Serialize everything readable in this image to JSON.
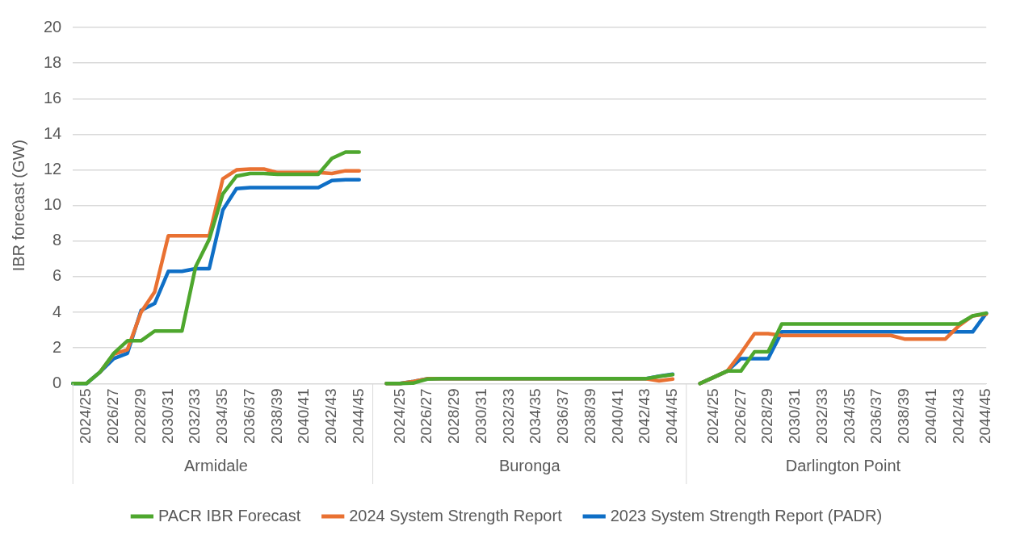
{
  "chart_data": {
    "type": "line",
    "ylabel": "IBR forecast (GW)",
    "categories": [
      null,
      "2024/25",
      null,
      "2026/27",
      null,
      "2028/29",
      null,
      "2030/31",
      null,
      "2032/33",
      null,
      "2034/35",
      null,
      "2036/37",
      null,
      "2038/39",
      null,
      "2040/41",
      null,
      "2042/43",
      null,
      "2044/45",
      null,
      null,
      "2024/25",
      null,
      "2026/27",
      null,
      "2028/29",
      null,
      "2030/31",
      null,
      "2032/33",
      null,
      "2034/35",
      null,
      "2036/37",
      null,
      "2038/39",
      null,
      "2040/41",
      null,
      "2042/43",
      null,
      "2044/45",
      null,
      null,
      "2024/25",
      null,
      "2026/27",
      null,
      "2028/29",
      null,
      "2030/31",
      null,
      "2032/33",
      null,
      "2034/35",
      null,
      "2036/37",
      null,
      "2038/39",
      null,
      "2040/41",
      null,
      "2042/43",
      null,
      "2044/45"
    ],
    "series": [
      {
        "name": "PACR IBR Forecast",
        "color": "#4ea72e",
        "values": [
          0,
          0,
          0.65,
          1.7,
          2.4,
          2.4,
          2.95,
          2.95,
          2.95,
          6.55,
          8.1,
          10.65,
          11.65,
          11.8,
          11.8,
          11.75,
          11.75,
          11.75,
          11.75,
          12.65,
          13,
          13,
          null,
          0,
          0,
          0.03,
          0.25,
          0.27,
          0.27,
          0.27,
          0.27,
          0.27,
          0.27,
          0.27,
          0.27,
          0.27,
          0.27,
          0.27,
          0.27,
          0.27,
          0.27,
          0.27,
          0.27,
          0.4,
          0.5,
          null,
          0,
          0.35,
          0.7,
          0.7,
          1.78,
          1.78,
          3.35,
          3.35,
          3.35,
          3.35,
          3.35,
          3.35,
          3.35,
          3.35,
          3.35,
          3.35,
          3.35,
          3.35,
          3.35,
          3.35,
          3.8,
          3.95
        ]
      },
      {
        "name": "2024 System Strength Report",
        "color": "#e97132",
        "values": [
          null,
          null,
          0.65,
          1.65,
          1.9,
          4,
          5.15,
          8.3,
          8.3,
          8.3,
          8.3,
          11.5,
          12,
          12.05,
          12.05,
          11.85,
          11.85,
          11.85,
          11.85,
          11.8,
          11.95,
          11.95,
          null,
          0,
          0,
          0.12,
          0.27,
          0.27,
          0.27,
          0.27,
          0.27,
          0.27,
          0.27,
          0.27,
          0.27,
          0.27,
          0.27,
          0.27,
          0.27,
          0.27,
          0.27,
          0.27,
          0.27,
          0.15,
          0.25,
          null,
          0,
          0.35,
          0.7,
          1.7,
          2.8,
          2.8,
          2.7,
          2.7,
          2.7,
          2.7,
          2.7,
          2.7,
          2.7,
          2.7,
          2.7,
          2.5,
          2.5,
          2.5,
          2.5,
          3.25,
          3.8,
          3.9
        ]
      },
      {
        "name": "2023 System Strength Report (PADR)",
        "color": "#0f6fc6",
        "values": [
          0,
          0,
          0.65,
          1.4,
          1.7,
          4.1,
          4.5,
          6.3,
          6.3,
          6.45,
          6.45,
          9.75,
          10.95,
          11,
          11,
          11,
          11,
          11,
          11,
          11.4,
          11.45,
          11.45,
          null,
          0,
          0,
          0.12,
          0.27,
          0.27,
          0.27,
          0.27,
          0.27,
          0.27,
          0.27,
          0.27,
          0.27,
          0.27,
          0.27,
          0.27,
          0.27,
          0.27,
          0.27,
          0.27,
          0.27,
          0.41,
          0.52,
          null,
          0,
          0.35,
          0.7,
          1.4,
          1.4,
          1.4,
          2.9,
          2.9,
          2.9,
          2.9,
          2.9,
          2.9,
          2.9,
          2.9,
          2.9,
          2.9,
          2.9,
          2.9,
          2.9,
          2.9,
          2.9,
          3.95
        ]
      }
    ],
    "annotations": [
      "Armidale",
      "Buronga",
      "Darlington Point"
    ],
    "ylim": [
      0,
      20
    ],
    "yticks": [
      0,
      2,
      4,
      6,
      8,
      10,
      12,
      14,
      16,
      18,
      20
    ],
    "grid": "y",
    "legend": "bottom",
    "marker": "none",
    "line_style": "solid"
  }
}
